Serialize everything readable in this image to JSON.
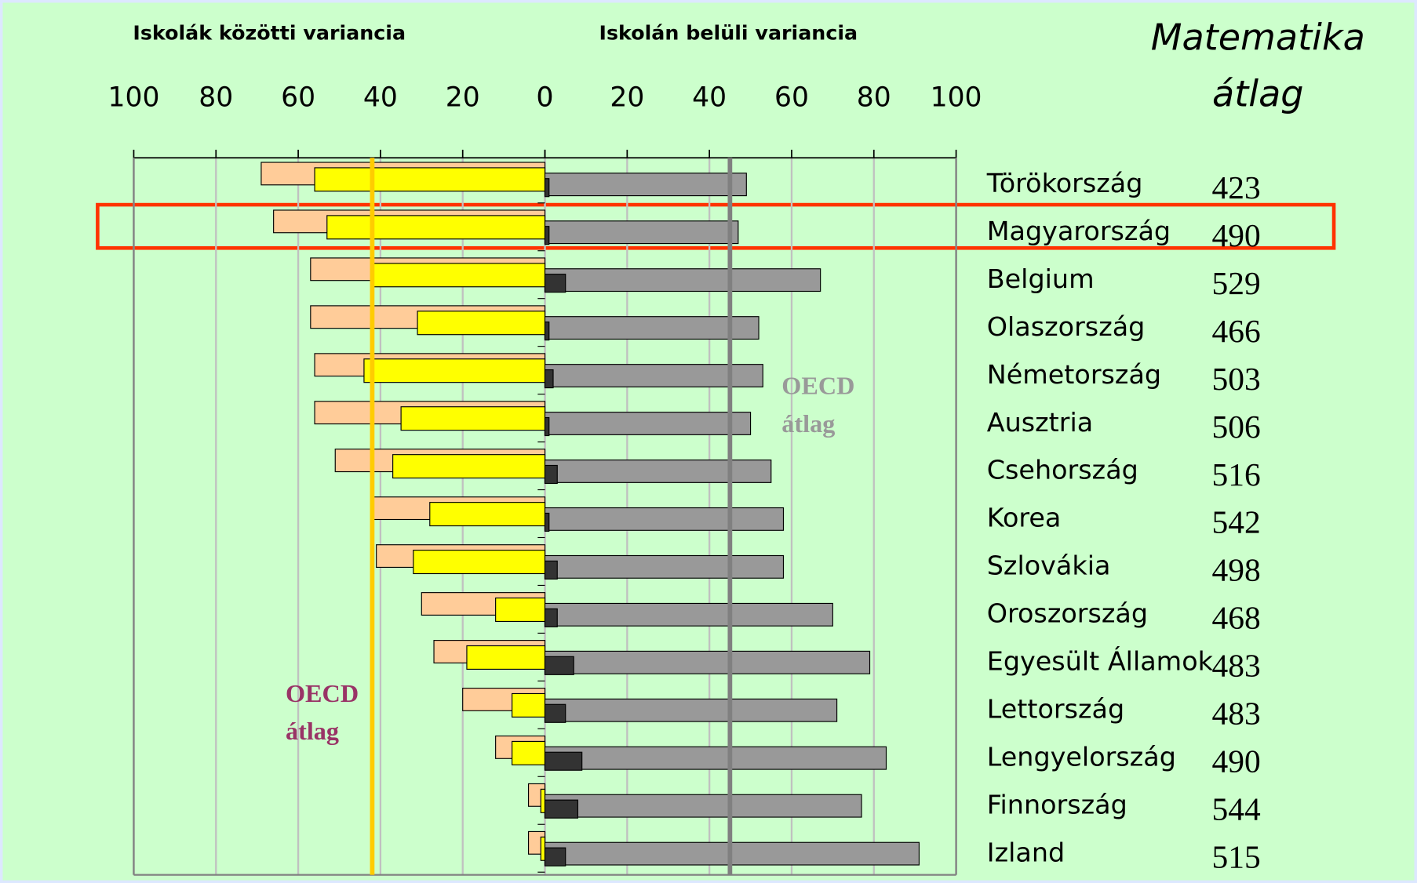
{
  "chart_data": {
    "type": "butterfly_bar",
    "left_title": "Iskolák közötti variancia",
    "right_title": "Iskolán belüli variancia",
    "score_header": [
      "Matematika",
      "átlag"
    ],
    "categories": [
      "Törökország",
      "Magyarország",
      "Belgium",
      "Olaszország",
      "Németország",
      "Ausztria",
      "Csehország",
      "Korea",
      "Szlovákia",
      "Oroszország",
      "Egyesült Államok",
      "Lettország",
      "Lengyelország",
      "Finnország",
      "Izland"
    ],
    "scores": [
      423,
      490,
      529,
      466,
      503,
      506,
      516,
      542,
      498,
      468,
      483,
      483,
      490,
      544,
      515
    ],
    "left_series": [
      {
        "color": "#ffcc99",
        "values": [
          69,
          66,
          57,
          57,
          56,
          56,
          51,
          42,
          41,
          30,
          27,
          20,
          12,
          4,
          4
        ]
      },
      {
        "color": "#ffff00",
        "values": [
          56,
          53,
          42,
          31,
          44,
          35,
          37,
          28,
          32,
          12,
          19,
          8,
          8,
          1,
          1
        ]
      }
    ],
    "right_series": [
      {
        "color": "#999999",
        "values": [
          49,
          47,
          67,
          52,
          53,
          50,
          55,
          58,
          58,
          70,
          79,
          71,
          83,
          77,
          91
        ]
      },
      {
        "color": "#333333",
        "values": [
          1,
          1,
          5,
          1,
          2,
          1,
          3,
          1,
          3,
          3,
          7,
          5,
          9,
          8,
          5
        ]
      }
    ],
    "xlim_left": [
      0,
      100
    ],
    "xticks_left": [
      100,
      80,
      60,
      40,
      20,
      0
    ],
    "xlim_right": [
      0,
      100
    ],
    "xticks_right": [
      0,
      20,
      40,
      60,
      80,
      100
    ],
    "grid": true,
    "oecd_lines": [
      {
        "side": "left",
        "value": 42,
        "color": "#ffcc00",
        "label": [
          "OECD",
          "átlag"
        ],
        "label_color": "#993366"
      },
      {
        "side": "right",
        "value": 45,
        "color": "#808080",
        "label": [
          "OECD",
          "átlag"
        ],
        "label_color": "#999999"
      }
    ]
  }
}
